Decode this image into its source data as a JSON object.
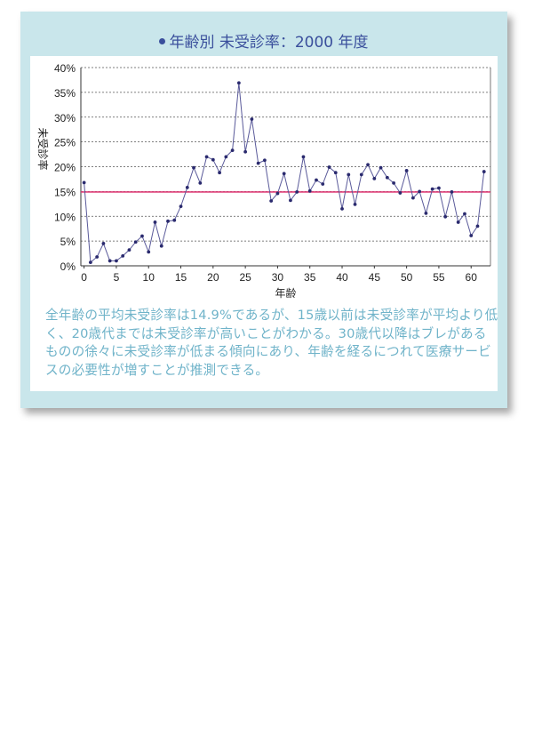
{
  "title": "年齢別 未受診率：2000 年度",
  "description": "全年齢の平均未受診率は14.9%であるが、15歳以前は未受診率が平均より低く、20歳代までは未受診率が高いことがわかる。30歳代以降はブレがあるものの徐々に未受診率が低まる傾向にあり、年齢を経るにつれて医療サービスの必要性が増すことが推測できる。",
  "colors": {
    "line": "#2a2a6e",
    "average": "#e0407a",
    "title": "#3a4f9c",
    "text": "#6fb3c9",
    "panel": "#c9e6eb"
  },
  "chart_data": {
    "type": "line",
    "title": "年齢別 未受診率：2000 年度",
    "xlabel": "年齢",
    "ylabel": "未受診率",
    "xlim": [
      -0.5,
      63
    ],
    "ylim": [
      0,
      40
    ],
    "xticks": [
      0,
      5,
      10,
      15,
      20,
      25,
      30,
      35,
      40,
      45,
      50,
      55,
      60
    ],
    "xtick_labels": [
      "0",
      "5",
      "10",
      "15",
      "20",
      "25",
      "30",
      "35",
      "40",
      "45",
      "50",
      "55",
      "60"
    ],
    "yticks": [
      0,
      5,
      10,
      15,
      20,
      25,
      30,
      35,
      40
    ],
    "ytick_labels": [
      "0%",
      "5%",
      "10%",
      "15%",
      "20%",
      "25%",
      "30%",
      "35%",
      "40%"
    ],
    "grid": "horizontal-dashed",
    "average_line": 14.9,
    "series": [
      {
        "name": "未受診率",
        "x": [
          0,
          1,
          2,
          3,
          4,
          5,
          6,
          7,
          8,
          9,
          10,
          11,
          12,
          13,
          14,
          15,
          16,
          17,
          18,
          19,
          20,
          21,
          22,
          23,
          24,
          25,
          26,
          27,
          28,
          29,
          30,
          31,
          32,
          33,
          34,
          35,
          36,
          37,
          38,
          39,
          40,
          41,
          42,
          43,
          44,
          45,
          46,
          47,
          48,
          49,
          50,
          51,
          52,
          53,
          54,
          55,
          56,
          57,
          58,
          59,
          60,
          61,
          62
        ],
        "values": [
          16.8,
          0.7,
          1.8,
          4.5,
          1.0,
          1.0,
          2.0,
          3.2,
          4.8,
          6.0,
          2.8,
          8.8,
          4.0,
          9.0,
          9.2,
          12.0,
          15.8,
          19.8,
          16.7,
          22.0,
          21.4,
          18.8,
          22.0,
          23.3,
          36.9,
          23.0,
          29.6,
          20.7,
          21.3,
          13.1,
          14.6,
          18.6,
          13.2,
          14.9,
          22.0,
          15.1,
          17.3,
          16.5,
          19.9,
          18.8,
          11.5,
          18.4,
          12.4,
          18.4,
          20.4,
          17.6,
          19.8,
          17.8,
          16.7,
          14.7,
          19.2,
          13.7,
          15.0,
          10.6,
          15.5,
          15.7,
          9.9,
          14.9,
          8.8,
          10.5,
          6.1,
          8.0,
          19.0
        ]
      }
    ]
  }
}
